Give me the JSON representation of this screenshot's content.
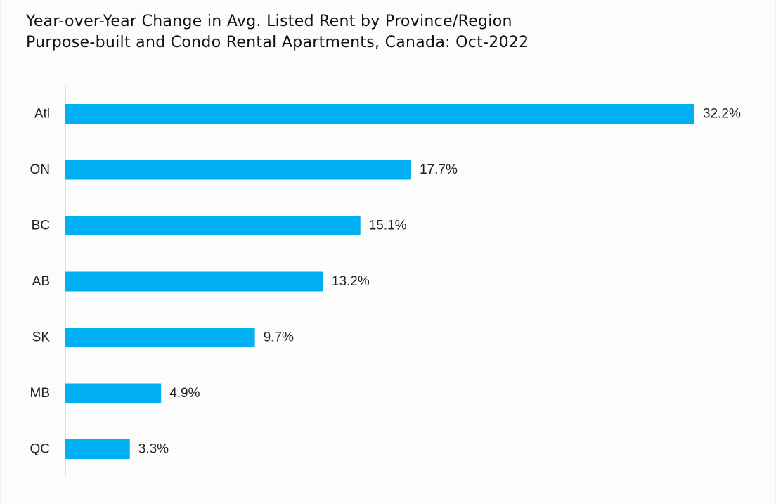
{
  "chart_data": {
    "type": "bar",
    "orientation": "horizontal",
    "title": "Year-over-Year Change in Avg. Listed Rent by Province/Region",
    "subtitle": "Purpose-built and Condo Rental Apartments, Canada: Oct-2022",
    "categories": [
      "Atl",
      "ON",
      "BC",
      "AB",
      "SK",
      "MB",
      "QC"
    ],
    "values": [
      32.2,
      17.7,
      15.1,
      13.2,
      9.7,
      4.9,
      3.3
    ],
    "value_labels": [
      "32.2%",
      "17.7%",
      "15.1%",
      "13.2%",
      "9.7%",
      "4.9%",
      "3.3%"
    ],
    "xlabel": "",
    "ylabel": "",
    "xlim": [
      0,
      32.2
    ],
    "grid": false,
    "legend": "none",
    "bar_color": "#00b0f0",
    "axis_color": "#d9d9d9"
  }
}
